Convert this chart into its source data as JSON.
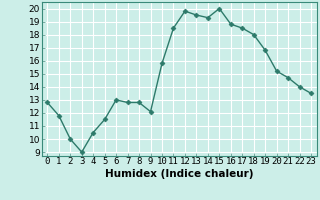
{
  "x": [
    0,
    1,
    2,
    3,
    4,
    5,
    6,
    7,
    8,
    9,
    10,
    11,
    12,
    13,
    14,
    15,
    16,
    17,
    18,
    19,
    20,
    21,
    22,
    23
  ],
  "y": [
    12.8,
    11.8,
    10.0,
    9.0,
    10.5,
    11.5,
    13.0,
    12.8,
    12.8,
    12.1,
    15.8,
    18.5,
    19.8,
    19.5,
    19.3,
    20.0,
    18.8,
    18.5,
    18.0,
    16.8,
    15.2,
    14.7,
    14.0,
    13.5
  ],
  "xlabel": "Humidex (Indice chaleur)",
  "xlim": [
    -0.5,
    23.5
  ],
  "ylim": [
    8.7,
    20.5
  ],
  "yticks": [
    9,
    10,
    11,
    12,
    13,
    14,
    15,
    16,
    17,
    18,
    19,
    20
  ],
  "xticks": [
    0,
    1,
    2,
    3,
    4,
    5,
    6,
    7,
    8,
    9,
    10,
    11,
    12,
    13,
    14,
    15,
    16,
    17,
    18,
    19,
    20,
    21,
    22,
    23
  ],
  "line_color": "#2d7a6a",
  "marker": "D",
  "marker_size": 2.5,
  "bg_color": "#cceee8",
  "grid_color": "#ffffff",
  "label_fontsize": 7.5,
  "tick_fontsize": 6.5
}
